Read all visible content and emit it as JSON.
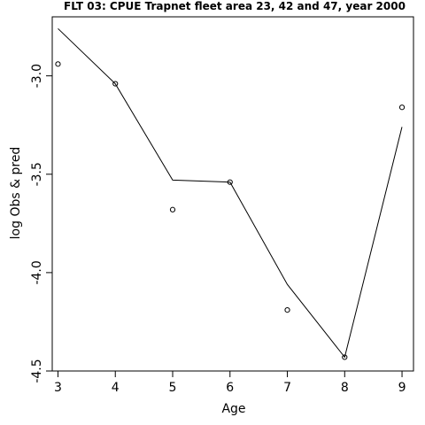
{
  "chart_data": {
    "type": "line",
    "title": "FLT 03: CPUE Trapnet fleet area 23, 42 and 47, year 2000",
    "xlabel": "Age",
    "ylabel": "log Obs & pred",
    "x_ticks": [
      "3",
      "4",
      "5",
      "6",
      "7",
      "8",
      "9"
    ],
    "y_ticks": [
      "-3.0",
      "-3.5",
      "-4.0",
      "-4.5"
    ],
    "xlim": [
      2.9,
      9.2
    ],
    "ylim": [
      -4.5,
      -2.7
    ],
    "grid": false,
    "legend": "none",
    "series": [
      {
        "style": "line",
        "x": [
          3,
          4,
          5,
          6,
          7,
          8,
          9
        ],
        "y": [
          -2.76,
          -3.04,
          -3.53,
          -3.54,
          -4.06,
          -4.43,
          -3.26
        ]
      },
      {
        "style": "points",
        "x": [
          3,
          4,
          5,
          6,
          7,
          8,
          9
        ],
        "y": [
          -2.94,
          -3.04,
          -3.68,
          -3.54,
          -4.19,
          -4.43,
          -3.16
        ]
      }
    ]
  }
}
